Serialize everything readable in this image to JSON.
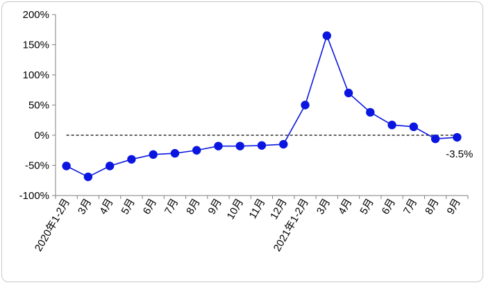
{
  "chart_data": {
    "type": "line",
    "title": "",
    "xlabel": "",
    "ylabel": "",
    "ylim": [
      -100,
      200
    ],
    "yticks": [
      -100,
      -50,
      0,
      50,
      100,
      150,
      200
    ],
    "ytick_labels": [
      "-100%",
      "-50%",
      "0%",
      "50%",
      "100%",
      "150%",
      "200%"
    ],
    "categories": [
      "2020年1-2月",
      "3月",
      "4月",
      "5月",
      "6月",
      "7月",
      "8月",
      "9月",
      "10月",
      "11月",
      "12月",
      "2021年1-2月",
      "3月",
      "4月",
      "5月",
      "6月",
      "7月",
      "8月",
      "9月"
    ],
    "series": [
      {
        "values": [
          -51,
          -69,
          -51,
          -40,
          -32,
          -30,
          -25,
          -18,
          -18,
          -17,
          -15,
          50,
          165,
          70,
          38,
          17,
          14,
          -6,
          -3.5
        ],
        "color": "#0a16e0"
      }
    ],
    "reference_line": {
      "y": 0,
      "style": "dashed",
      "color": "#000000"
    },
    "annotations": [
      {
        "text": "-3.5%",
        "point_index": 18
      }
    ],
    "grid": false,
    "legend": "none"
  }
}
